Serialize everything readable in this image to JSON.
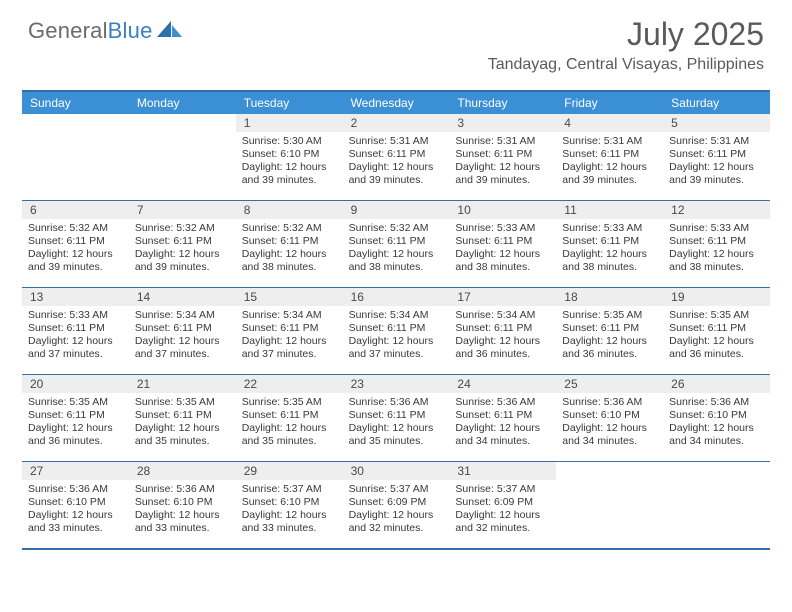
{
  "brand": {
    "text1": "General",
    "text2": "Blue"
  },
  "colors": {
    "header_bg": "#3b8fd4",
    "border": "#2f6fab",
    "daybar": "#eeeeee",
    "logo_gray": "#6b6b6b",
    "logo_blue": "#3b7fc4",
    "text": "#393939"
  },
  "title": "July 2025",
  "location": "Tandayag, Central Visayas, Philippines",
  "day_headers": [
    "Sunday",
    "Monday",
    "Tuesday",
    "Wednesday",
    "Thursday",
    "Friday",
    "Saturday"
  ],
  "weeks": [
    [
      {
        "n": "",
        "sr": "",
        "ss": "",
        "dl": ""
      },
      {
        "n": "",
        "sr": "",
        "ss": "",
        "dl": ""
      },
      {
        "n": "1",
        "sr": "Sunrise: 5:30 AM",
        "ss": "Sunset: 6:10 PM",
        "dl": "Daylight: 12 hours and 39 minutes."
      },
      {
        "n": "2",
        "sr": "Sunrise: 5:31 AM",
        "ss": "Sunset: 6:11 PM",
        "dl": "Daylight: 12 hours and 39 minutes."
      },
      {
        "n": "3",
        "sr": "Sunrise: 5:31 AM",
        "ss": "Sunset: 6:11 PM",
        "dl": "Daylight: 12 hours and 39 minutes."
      },
      {
        "n": "4",
        "sr": "Sunrise: 5:31 AM",
        "ss": "Sunset: 6:11 PM",
        "dl": "Daylight: 12 hours and 39 minutes."
      },
      {
        "n": "5",
        "sr": "Sunrise: 5:31 AM",
        "ss": "Sunset: 6:11 PM",
        "dl": "Daylight: 12 hours and 39 minutes."
      }
    ],
    [
      {
        "n": "6",
        "sr": "Sunrise: 5:32 AM",
        "ss": "Sunset: 6:11 PM",
        "dl": "Daylight: 12 hours and 39 minutes."
      },
      {
        "n": "7",
        "sr": "Sunrise: 5:32 AM",
        "ss": "Sunset: 6:11 PM",
        "dl": "Daylight: 12 hours and 39 minutes."
      },
      {
        "n": "8",
        "sr": "Sunrise: 5:32 AM",
        "ss": "Sunset: 6:11 PM",
        "dl": "Daylight: 12 hours and 38 minutes."
      },
      {
        "n": "9",
        "sr": "Sunrise: 5:32 AM",
        "ss": "Sunset: 6:11 PM",
        "dl": "Daylight: 12 hours and 38 minutes."
      },
      {
        "n": "10",
        "sr": "Sunrise: 5:33 AM",
        "ss": "Sunset: 6:11 PM",
        "dl": "Daylight: 12 hours and 38 minutes."
      },
      {
        "n": "11",
        "sr": "Sunrise: 5:33 AM",
        "ss": "Sunset: 6:11 PM",
        "dl": "Daylight: 12 hours and 38 minutes."
      },
      {
        "n": "12",
        "sr": "Sunrise: 5:33 AM",
        "ss": "Sunset: 6:11 PM",
        "dl": "Daylight: 12 hours and 38 minutes."
      }
    ],
    [
      {
        "n": "13",
        "sr": "Sunrise: 5:33 AM",
        "ss": "Sunset: 6:11 PM",
        "dl": "Daylight: 12 hours and 37 minutes."
      },
      {
        "n": "14",
        "sr": "Sunrise: 5:34 AM",
        "ss": "Sunset: 6:11 PM",
        "dl": "Daylight: 12 hours and 37 minutes."
      },
      {
        "n": "15",
        "sr": "Sunrise: 5:34 AM",
        "ss": "Sunset: 6:11 PM",
        "dl": "Daylight: 12 hours and 37 minutes."
      },
      {
        "n": "16",
        "sr": "Sunrise: 5:34 AM",
        "ss": "Sunset: 6:11 PM",
        "dl": "Daylight: 12 hours and 37 minutes."
      },
      {
        "n": "17",
        "sr": "Sunrise: 5:34 AM",
        "ss": "Sunset: 6:11 PM",
        "dl": "Daylight: 12 hours and 36 minutes."
      },
      {
        "n": "18",
        "sr": "Sunrise: 5:35 AM",
        "ss": "Sunset: 6:11 PM",
        "dl": "Daylight: 12 hours and 36 minutes."
      },
      {
        "n": "19",
        "sr": "Sunrise: 5:35 AM",
        "ss": "Sunset: 6:11 PM",
        "dl": "Daylight: 12 hours and 36 minutes."
      }
    ],
    [
      {
        "n": "20",
        "sr": "Sunrise: 5:35 AM",
        "ss": "Sunset: 6:11 PM",
        "dl": "Daylight: 12 hours and 36 minutes."
      },
      {
        "n": "21",
        "sr": "Sunrise: 5:35 AM",
        "ss": "Sunset: 6:11 PM",
        "dl": "Daylight: 12 hours and 35 minutes."
      },
      {
        "n": "22",
        "sr": "Sunrise: 5:35 AM",
        "ss": "Sunset: 6:11 PM",
        "dl": "Daylight: 12 hours and 35 minutes."
      },
      {
        "n": "23",
        "sr": "Sunrise: 5:36 AM",
        "ss": "Sunset: 6:11 PM",
        "dl": "Daylight: 12 hours and 35 minutes."
      },
      {
        "n": "24",
        "sr": "Sunrise: 5:36 AM",
        "ss": "Sunset: 6:11 PM",
        "dl": "Daylight: 12 hours and 34 minutes."
      },
      {
        "n": "25",
        "sr": "Sunrise: 5:36 AM",
        "ss": "Sunset: 6:10 PM",
        "dl": "Daylight: 12 hours and 34 minutes."
      },
      {
        "n": "26",
        "sr": "Sunrise: 5:36 AM",
        "ss": "Sunset: 6:10 PM",
        "dl": "Daylight: 12 hours and 34 minutes."
      }
    ],
    [
      {
        "n": "27",
        "sr": "Sunrise: 5:36 AM",
        "ss": "Sunset: 6:10 PM",
        "dl": "Daylight: 12 hours and 33 minutes."
      },
      {
        "n": "28",
        "sr": "Sunrise: 5:36 AM",
        "ss": "Sunset: 6:10 PM",
        "dl": "Daylight: 12 hours and 33 minutes."
      },
      {
        "n": "29",
        "sr": "Sunrise: 5:37 AM",
        "ss": "Sunset: 6:10 PM",
        "dl": "Daylight: 12 hours and 33 minutes."
      },
      {
        "n": "30",
        "sr": "Sunrise: 5:37 AM",
        "ss": "Sunset: 6:09 PM",
        "dl": "Daylight: 12 hours and 32 minutes."
      },
      {
        "n": "31",
        "sr": "Sunrise: 5:37 AM",
        "ss": "Sunset: 6:09 PM",
        "dl": "Daylight: 12 hours and 32 minutes."
      },
      {
        "n": "",
        "sr": "",
        "ss": "",
        "dl": ""
      },
      {
        "n": "",
        "sr": "",
        "ss": "",
        "dl": ""
      }
    ]
  ]
}
